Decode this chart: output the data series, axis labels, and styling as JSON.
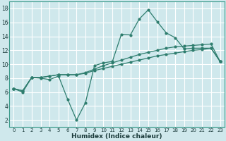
{
  "xlabel": "Humidex (Indice chaleur)",
  "ylabel": "",
  "bg_color": "#cfe8ec",
  "grid_color": "#ffffff",
  "line_color": "#2e7d6e",
  "xlim": [
    -0.5,
    23.5
  ],
  "ylim": [
    1,
    19
  ],
  "xticks": [
    0,
    1,
    2,
    3,
    4,
    5,
    6,
    7,
    8,
    9,
    10,
    11,
    12,
    13,
    14,
    15,
    16,
    17,
    18,
    19,
    20,
    21,
    22,
    23
  ],
  "yticks": [
    2,
    4,
    6,
    8,
    10,
    12,
    14,
    16,
    18
  ],
  "series1_x": [
    0,
    1,
    2,
    3,
    4,
    5,
    6,
    7,
    8,
    9,
    10,
    11,
    12,
    13,
    14,
    15,
    16,
    17,
    18,
    19,
    20,
    21,
    22,
    23
  ],
  "series1_y": [
    6.5,
    6.0,
    8.1,
    8.0,
    7.8,
    8.3,
    5.0,
    2.0,
    4.5,
    9.8,
    10.2,
    10.4,
    14.3,
    14.2,
    16.5,
    17.8,
    16.1,
    14.5,
    13.8,
    12.2,
    12.3,
    12.3,
    12.3,
    10.4
  ],
  "series2_x": [
    0,
    1,
    2,
    3,
    4,
    5,
    6,
    7,
    8,
    9,
    10,
    11,
    12,
    13,
    14,
    15,
    16,
    17,
    18,
    19,
    20,
    21,
    22,
    23
  ],
  "series2_y": [
    6.5,
    6.2,
    8.1,
    8.1,
    8.3,
    8.5,
    8.5,
    8.5,
    8.7,
    9.1,
    9.4,
    9.7,
    10.0,
    10.3,
    10.6,
    10.9,
    11.2,
    11.4,
    11.6,
    11.8,
    12.0,
    12.1,
    12.3,
    10.4
  ],
  "series3_x": [
    0,
    1,
    2,
    3,
    4,
    5,
    6,
    7,
    8,
    9,
    10,
    11,
    12,
    13,
    14,
    15,
    16,
    17,
    18,
    19,
    20,
    21,
    22,
    23
  ],
  "series3_y": [
    6.5,
    6.2,
    8.1,
    8.1,
    8.3,
    8.5,
    8.5,
    8.5,
    8.8,
    9.3,
    9.8,
    10.2,
    10.6,
    11.0,
    11.4,
    11.7,
    12.0,
    12.3,
    12.5,
    12.6,
    12.7,
    12.8,
    12.9,
    10.4
  ]
}
